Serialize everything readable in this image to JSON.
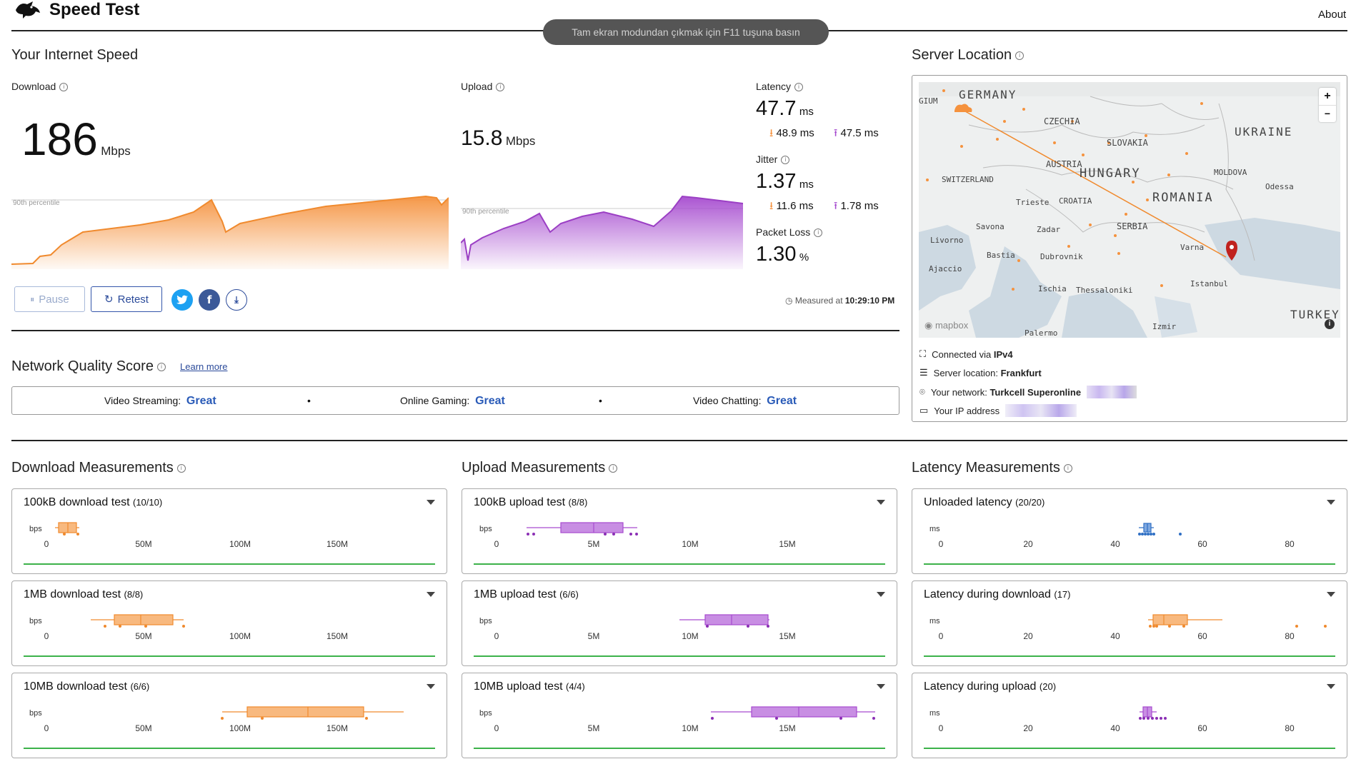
{
  "header": {
    "app_title": "Speed Test",
    "about_link": "About",
    "fullscreen_toast": "Tam ekran modundan çıkmak için F11 tuşuna basın"
  },
  "speed": {
    "section_title": "Your Internet Speed",
    "download": {
      "label": "Download",
      "value": "186",
      "unit": "Mbps",
      "percentile_label": "90th percentile"
    },
    "upload": {
      "label": "Upload",
      "value": "15.8",
      "unit": "Mbps",
      "percentile_label": "90th percentile"
    },
    "latency": {
      "label": "Latency",
      "value": "47.7",
      "unit": "ms",
      "down": "48.9 ms",
      "up": "47.5 ms"
    },
    "jitter": {
      "label": "Jitter",
      "value": "1.37",
      "unit": "ms",
      "down": "11.6 ms",
      "up": "1.78 ms"
    },
    "packet_loss": {
      "label": "Packet Loss",
      "value": "1.30",
      "unit": "%"
    },
    "buttons": {
      "pause": "Pause",
      "retest": "Retest"
    },
    "measured_prefix": "Measured at",
    "measured_time": "10:29:10 PM"
  },
  "server": {
    "title": "Server Location",
    "map_labels": [
      "GIUM",
      "GERMANY",
      "CZECHIA",
      "SLOVAKIA",
      "UKRAINE",
      "AUSTRIA",
      "HUNGARY",
      "MOLDOVA",
      "Odessa",
      "SWITZERLAND",
      "Trieste",
      "CROATIA",
      "ROMANIA",
      "Savona",
      "Zadar",
      "SERBIA",
      "Livorno",
      "Bastia",
      "Dubrovnik",
      "Varna",
      "Ajaccio",
      "Ischia",
      "Thessaloniki",
      "Istanbul",
      "TURKEY",
      "Palermo",
      "Izmir"
    ],
    "mapbox": "mapbox",
    "zoom_in": "+",
    "zoom_out": "−",
    "connected_prefix": "Connected via",
    "connected_value": "IPv4",
    "location_prefix": "Server location:",
    "location_value": "Frankfurt",
    "network_prefix": "Your network:",
    "network_value": "Turkcell Superonline",
    "ip_prefix": "Your IP address"
  },
  "quality": {
    "title": "Network Quality Score",
    "learn_more": "Learn more",
    "items": [
      {
        "label": "Video Streaming:",
        "value": "Great"
      },
      {
        "label": "Online Gaming:",
        "value": "Great"
      },
      {
        "label": "Video Chatting:",
        "value": "Great"
      }
    ],
    "separator": "•"
  },
  "measurements": {
    "download_title": "Download Measurements",
    "upload_title": "Upload Measurements",
    "latency_title": "Latency Measurements",
    "download_cards": [
      {
        "title": "100kB download test",
        "count": "(10/10)",
        "unit": "bps",
        "ticks": [
          "0",
          "50M",
          "100M",
          "150M"
        ]
      },
      {
        "title": "1MB download test",
        "count": "(8/8)",
        "unit": "bps",
        "ticks": [
          "0",
          "50M",
          "100M",
          "150M"
        ]
      },
      {
        "title": "10MB download test",
        "count": "(6/6)",
        "unit": "bps",
        "ticks": [
          "0",
          "50M",
          "100M",
          "150M"
        ]
      }
    ],
    "upload_cards": [
      {
        "title": "100kB upload test",
        "count": "(8/8)",
        "unit": "bps",
        "ticks": [
          "0",
          "5M",
          "10M",
          "15M"
        ]
      },
      {
        "title": "1MB upload test",
        "count": "(6/6)",
        "unit": "bps",
        "ticks": [
          "0",
          "5M",
          "10M",
          "15M"
        ]
      },
      {
        "title": "10MB upload test",
        "count": "(4/4)",
        "unit": "bps",
        "ticks": [
          "0",
          "5M",
          "10M",
          "15M"
        ]
      }
    ],
    "latency_cards": [
      {
        "title": "Unloaded latency",
        "count": "(20/20)",
        "unit": "ms",
        "ticks": [
          "0",
          "20",
          "40",
          "60",
          "80"
        ]
      },
      {
        "title": "Latency during download",
        "count": "(17)",
        "unit": "ms",
        "ticks": [
          "0",
          "20",
          "40",
          "60",
          "80"
        ]
      },
      {
        "title": "Latency during upload",
        "count": "(20)",
        "unit": "ms",
        "ticks": [
          "0",
          "20",
          "40",
          "60",
          "80"
        ]
      }
    ]
  },
  "colors": {
    "download": "#f5923e",
    "upload": "#a64bcf",
    "latency_unloaded": "#2f6fc4",
    "great": "#2a5bb8",
    "ok_line": "#3cb24a"
  }
}
